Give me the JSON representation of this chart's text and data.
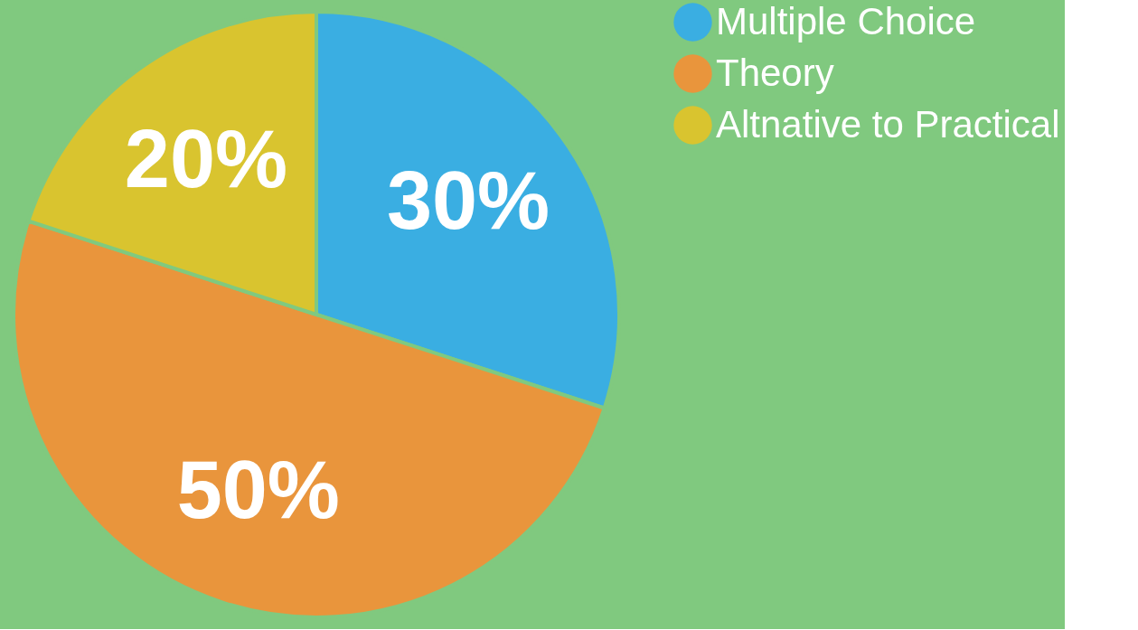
{
  "chart_data": {
    "type": "pie",
    "categories": [
      "Multiple Choice",
      "Theory",
      "Altnative to Practical"
    ],
    "values": [
      30,
      50,
      20
    ],
    "colors": [
      "#3aaee2",
      "#e9953c",
      "#d9c42f"
    ],
    "value_labels": [
      "30%",
      "50%",
      "20%"
    ],
    "legend": "right"
  }
}
